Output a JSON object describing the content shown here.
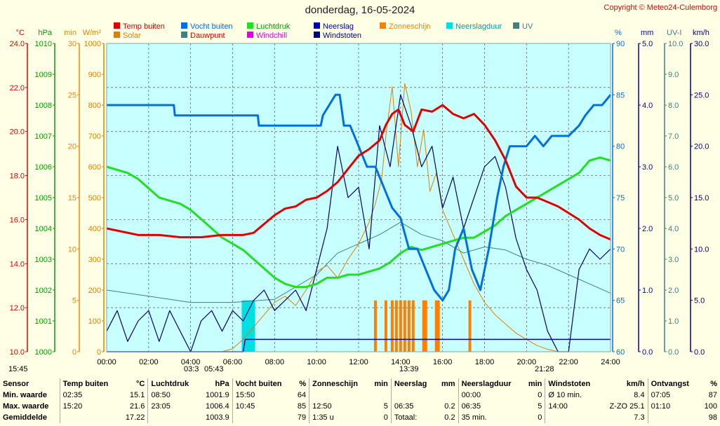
{
  "title": "donderdag, 16-05-2024",
  "copyright": "Copyright © Meteo24-Culemborg",
  "colors": {
    "bg": "#ffffe6",
    "plot": "#c8ffff",
    "temp": "#e00000",
    "hum": "#0070e0",
    "press": "#20e020",
    "rain": "#0000c0",
    "gust": "#000080",
    "sun": "#ff8000",
    "raindur": "#00e0e0",
    "uv": "#408080",
    "solar": "#e08000",
    "dew": "#408080",
    "wc": "#e000e0"
  },
  "legend": [
    {
      "label": "Temp buiten",
      "color": "#e00000",
      "text": "#e00000"
    },
    {
      "label": "Vocht buiten",
      "color": "#0070e0",
      "text": "#0070e0"
    },
    {
      "label": "Luchtdruk",
      "color": "#20e020",
      "text": "#00a000"
    },
    {
      "label": "Neerslag",
      "color": "#0000c0",
      "text": "#0000c0"
    },
    {
      "label": "Zonneschijn",
      "color": "#ff8000",
      "text": "#ff8000"
    },
    {
      "label": "Neerslagduur",
      "color": "#00e0e0",
      "text": "#00a0a0"
    },
    {
      "label": "UV",
      "color": "#408080",
      "text": "#408080"
    },
    {
      "label": "Solar",
      "color": "#e08000",
      "text": "#e08000"
    },
    {
      "label": "Dauwpunt",
      "color": "#408080",
      "text": "#e00000"
    },
    {
      "label": "Windchill",
      "color": "#e000e0",
      "text": "#e000e0"
    },
    {
      "label": "Windstoten",
      "color": "#000080",
      "text": "#000080"
    }
  ],
  "axes_left": [
    {
      "unit": "°C",
      "color": "#e00000",
      "ticks": [
        "10.0",
        "12.0",
        "14.0",
        "16.0",
        "18.0",
        "20.0",
        "22.0",
        "24.0"
      ]
    },
    {
      "unit": "hPa",
      "color": "#00a000",
      "ticks": [
        "1000",
        "1001",
        "1002",
        "1003",
        "1004",
        "1005",
        "1006",
        "1007",
        "1008",
        "1009",
        "1010"
      ]
    },
    {
      "unit": "min",
      "color": "#ff8000",
      "ticks": [
        "0",
        "5",
        "10",
        "15",
        "20",
        "25",
        "30"
      ]
    },
    {
      "unit": "W/m²",
      "color": "#e08000",
      "ticks": [
        "0",
        "100",
        "200",
        "300",
        "400",
        "500",
        "600",
        "700",
        "800",
        "900",
        "1000"
      ]
    }
  ],
  "axes_right": [
    {
      "unit": "%",
      "color": "#0070e0",
      "ticks": [
        "60",
        "65",
        "70",
        "75",
        "80",
        "85",
        "90"
      ]
    },
    {
      "unit": "mm",
      "color": "#0000c0",
      "ticks": [
        "0.0",
        "1.0",
        "2.0",
        "3.0",
        "4.0",
        "5.0"
      ]
    },
    {
      "unit": "UV-I",
      "color": "#408080",
      "ticks": [
        "0.0",
        "1.0",
        "2.0",
        "3.0",
        "4.0",
        "5.0",
        "6.0",
        "7.0",
        "8.0",
        "9.0",
        "10.0"
      ]
    },
    {
      "unit": "km/h",
      "color": "#000080",
      "ticks": [
        "0.0",
        "5.0",
        "10.0",
        "15.0",
        "20.0",
        "25.0",
        "30.0"
      ]
    }
  ],
  "x_ticks": [
    "00:00",
    "02:00",
    "04:00",
    "06:00",
    "08:00",
    "10:00",
    "12:00",
    "14:00",
    "16:00",
    "18:00",
    "20:00",
    "22:00",
    "24:00"
  ],
  "sun_events": {
    "left_time": "15:45",
    "sunrise_twilight": "03:3",
    "sunrise": "05:43",
    "solar_noon": "13:39",
    "sunset": "21:28"
  },
  "chart_data": {
    "type": "line",
    "title": "donderdag, 16-05-2024",
    "x_unit": "hours",
    "xlim": [
      0,
      24
    ],
    "series": [
      {
        "name": "Temp buiten",
        "unit": "°C",
        "ylim": [
          10,
          24
        ],
        "x": [
          0,
          0.5,
          1.5,
          2.5,
          3.5,
          4.5,
          5.5,
          6.5,
          7,
          7.5,
          8,
          8.5,
          9,
          9.5,
          10,
          10.5,
          11,
          11.5,
          12,
          12.5,
          13,
          13.3,
          13.6,
          13.9,
          14.2,
          14.6,
          15,
          15.5,
          16,
          16.5,
          17,
          17.5,
          18,
          18.5,
          19,
          19.5,
          20,
          20.5,
          21,
          21.5,
          22,
          22.5,
          23,
          23.5,
          24
        ],
        "y": [
          15.6,
          15.5,
          15.3,
          15.3,
          15.2,
          15.2,
          15.3,
          15.3,
          15.4,
          15.8,
          16.2,
          16.5,
          16.6,
          16.9,
          17.0,
          17.3,
          17.7,
          18.3,
          18.9,
          19.2,
          19.6,
          20.3,
          20.8,
          21.0,
          20.3,
          20.0,
          21.0,
          20.9,
          21.2,
          20.8,
          20.6,
          20.8,
          20.3,
          19.6,
          18.7,
          17.5,
          17.0,
          17.0,
          16.8,
          16.6,
          16.3,
          16.0,
          15.6,
          15.3,
          15.1
        ]
      },
      {
        "name": "Vocht buiten",
        "unit": "%",
        "ylim": [
          60,
          90
        ],
        "x": [
          0,
          3.2,
          3.25,
          7.2,
          7.25,
          10.2,
          10.3,
          10.9,
          11.1,
          11.3,
          11.6,
          12,
          12.4,
          12.8,
          13.2,
          13.6,
          14,
          14.4,
          14.8,
          15.2,
          15.6,
          16,
          16.3,
          16.6,
          17,
          17.4,
          17.8,
          18.2,
          18.6,
          18.9,
          19.2,
          19.6,
          20,
          20.4,
          20.8,
          21.2,
          22,
          22.5,
          22.8,
          23.2,
          23.6,
          24
        ],
        "y": [
          84,
          84,
          83,
          83,
          82,
          82,
          83,
          85,
          85,
          82,
          82,
          80,
          78,
          78,
          76,
          74,
          73,
          70,
          70,
          68,
          66,
          65,
          66,
          70,
          72,
          68,
          66,
          70,
          75,
          78,
          80,
          80,
          80,
          81,
          80,
          81,
          81,
          82,
          83,
          84,
          84,
          85
        ]
      },
      {
        "name": "Luchtdruk",
        "unit": "hPa",
        "ylim": [
          1000,
          1010
        ],
        "x": [
          0,
          0.5,
          1,
          1.5,
          2,
          2.5,
          3,
          3.5,
          4,
          4.5,
          5,
          5.5,
          6,
          6.5,
          7,
          7.5,
          8,
          8.5,
          9,
          9.5,
          10,
          10.5,
          11,
          11.5,
          12,
          12.5,
          13,
          13.5,
          14,
          14.5,
          15,
          15.5,
          16,
          16.5,
          17,
          17.5,
          18,
          18.5,
          19,
          19.5,
          20,
          20.5,
          21,
          21.5,
          22,
          22.5,
          23,
          23.5,
          24
        ],
        "y": [
          1006.0,
          1005.9,
          1005.8,
          1005.6,
          1005.3,
          1005.0,
          1004.9,
          1004.8,
          1004.6,
          1004.3,
          1004.0,
          1003.7,
          1003.5,
          1003.3,
          1003.0,
          1002.7,
          1002.4,
          1002.2,
          1002.1,
          1002.1,
          1002.2,
          1002.4,
          1002.4,
          1002.5,
          1002.5,
          1002.6,
          1002.7,
          1002.9,
          1003.2,
          1003.4,
          1003.3,
          1003.4,
          1003.5,
          1003.6,
          1003.7,
          1003.7,
          1003.9,
          1004.1,
          1004.4,
          1004.6,
          1004.8,
          1005.0,
          1005.2,
          1005.4,
          1005.6,
          1005.8,
          1006.2,
          1006.3,
          1006.2
        ]
      },
      {
        "name": "Solar",
        "unit": "W/m²",
        "ylim": [
          0,
          1000
        ],
        "x": [
          0,
          5.5,
          6,
          6.5,
          7,
          7.5,
          8,
          8.5,
          9,
          9.5,
          10,
          10.5,
          11,
          11.5,
          12,
          12.5,
          12.8,
          13.1,
          13.3,
          13.6,
          13.9,
          14.2,
          14.5,
          14.8,
          15.1,
          15.4,
          15.7,
          16,
          16.5,
          17,
          17.5,
          18,
          18.5,
          19,
          19.5,
          20,
          20.5,
          21,
          21.5,
          24
        ],
        "y": [
          0,
          0,
          10,
          40,
          80,
          120,
          160,
          180,
          150,
          200,
          260,
          280,
          240,
          300,
          350,
          420,
          480,
          560,
          700,
          860,
          600,
          870,
          780,
          600,
          720,
          520,
          580,
          460,
          380,
          300,
          220,
          160,
          120,
          90,
          60,
          40,
          20,
          8,
          0,
          0
        ]
      },
      {
        "name": "Windstoten",
        "unit": "km/h",
        "ylim": [
          0,
          30
        ],
        "x": [
          0,
          0.5,
          1,
          1.5,
          2,
          2.5,
          3,
          3.5,
          4,
          4.5,
          5,
          5.5,
          6,
          6.5,
          7,
          7.5,
          8,
          8.5,
          9,
          9.5,
          10,
          10.5,
          11,
          11.5,
          12,
          12.5,
          13,
          13.5,
          14,
          14.5,
          15,
          15.5,
          16,
          16.5,
          17,
          17.5,
          18,
          18.5,
          19,
          19.5,
          20,
          20.5,
          21,
          21.5,
          22,
          22.5,
          23,
          23.5,
          24
        ],
        "y": [
          2,
          4,
          1,
          3,
          4,
          1,
          4,
          2,
          0,
          3,
          4,
          2,
          4,
          3,
          5,
          6,
          4,
          5,
          6,
          4,
          8,
          12,
          20,
          15,
          16,
          10,
          22,
          18,
          25,
          22,
          18,
          20,
          14,
          17,
          12,
          15,
          18,
          19,
          16,
          11,
          8,
          6,
          2,
          0,
          0,
          8,
          10,
          9,
          10
        ]
      },
      {
        "name": "Neerslag",
        "unit": "mm",
        "ylim": [
          0,
          5
        ],
        "x": [
          0,
          6.5,
          6.6,
          24
        ],
        "y": [
          0,
          0,
          0.2,
          0.2
        ]
      },
      {
        "name": "UV",
        "unit": "UV-I",
        "ylim": [
          0,
          10
        ],
        "x": [
          0,
          2,
          4,
          6,
          8,
          10,
          11,
          12,
          13,
          14,
          15,
          16,
          17,
          18,
          19,
          20,
          21,
          22,
          23,
          24
        ],
        "y": [
          2.0,
          1.8,
          1.6,
          1.6,
          1.7,
          2.5,
          3.2,
          3.5,
          3.8,
          4.2,
          3.8,
          3.6,
          3.2,
          3.4,
          3.3,
          3.0,
          2.8,
          2.5,
          2.2,
          1.9
        ]
      }
    ],
    "bars": {
      "Zonneschijn": {
        "unit": "min",
        "ylim": [
          0,
          30
        ],
        "x": [
          12.8,
          13.3,
          13.6,
          13.8,
          14.0,
          14.2,
          14.4,
          14.6,
          15.1,
          15.2,
          15.7,
          15.8,
          17.3
        ],
        "y": [
          5,
          5,
          5,
          5,
          5,
          5,
          5,
          5,
          5,
          5,
          5,
          5,
          5
        ]
      },
      "Neerslagduur": {
        "unit": "min",
        "ylim": [
          0,
          30
        ],
        "x": [
          6.5,
          6.6,
          6.7,
          6.8,
          6.9,
          7.0
        ],
        "y": [
          5,
          5,
          5,
          5,
          5,
          5
        ]
      }
    }
  },
  "stats": {
    "headers": [
      "Sensor",
      "Temp buiten",
      "°C",
      "Luchtdruk",
      "hPa",
      "Vocht buiten",
      "%",
      "Zonneschijn",
      "min",
      "Neerslag",
      "mm",
      "Neerslagduur",
      "min",
      "Windstoten",
      "km/h",
      "Ontvangst",
      "%"
    ],
    "rows": [
      [
        "Min. waarde",
        "02:35",
        "15.1",
        "08:50",
        "1001.9",
        "15:50",
        "64",
        "",
        "",
        "",
        "",
        "00:00",
        "0",
        "Ø 10 min.",
        "8.4",
        "07:05",
        "87"
      ],
      [
        "Max. waarde",
        "15:20",
        "21.6",
        "23:05",
        "1006.4",
        "10:45",
        "85",
        "12:50",
        "5",
        "06:35",
        "0.2",
        "06:35",
        "5",
        "14:00",
        "Z-ZO 25.1",
        "01:10",
        "100"
      ],
      [
        "Gemiddelde",
        "",
        "17.22",
        "",
        "1003.9",
        "",
        "79",
        "1:35 u",
        "0",
        "Totaal:",
        "0.2",
        "35 min.",
        "0",
        "",
        "7.3",
        "",
        "98"
      ]
    ]
  }
}
